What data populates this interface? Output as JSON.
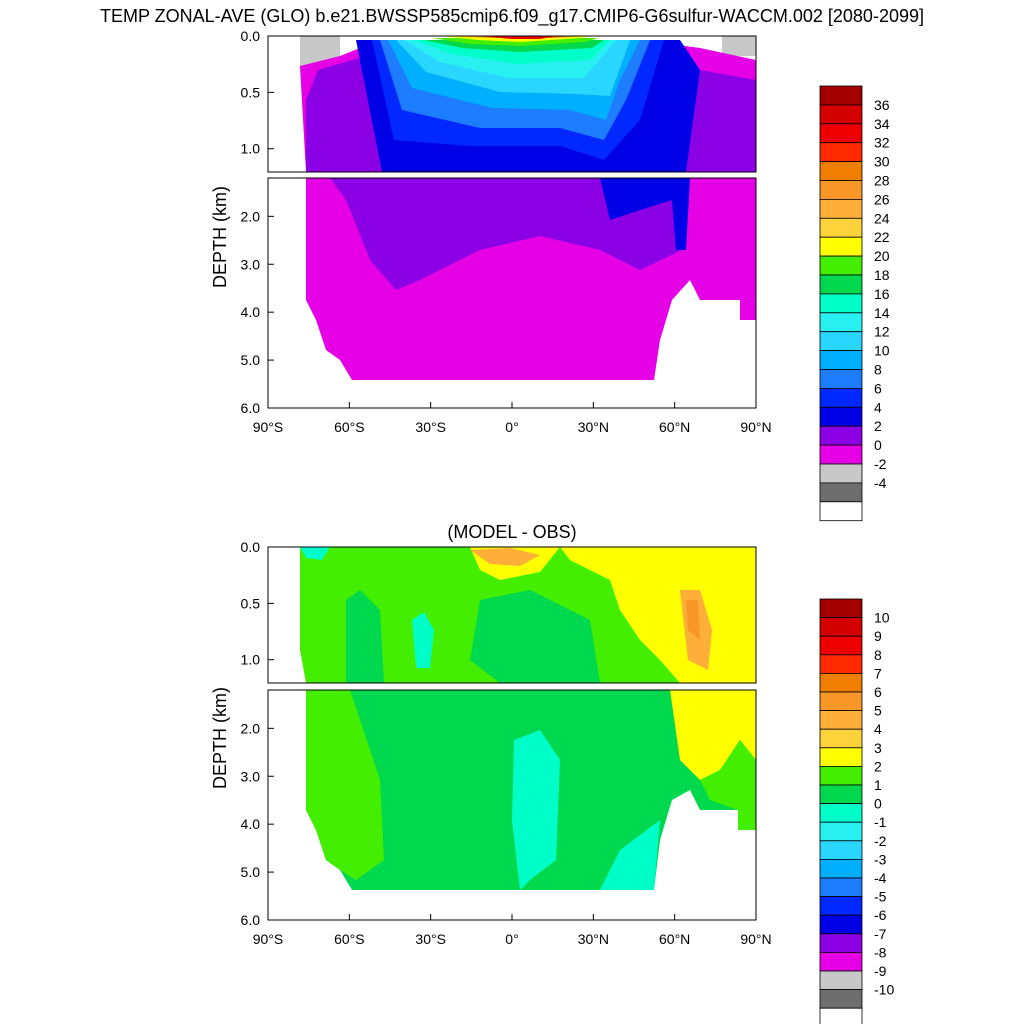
{
  "title": "TEMP ZONAL-AVE (GLO) b.e21.BWSSP585cmip6.f09_g17.CMIP6-G6sulfur-WACCM.002 [2080-2099]",
  "chart_data": [
    {
      "type": "heatmap",
      "title": "",
      "ylabel": "DEPTH (km)",
      "x_ticks": [
        "90°S",
        "60°S",
        "30°S",
        "0°",
        "30°N",
        "60°N",
        "90°N"
      ],
      "x_range": [
        -90,
        90
      ],
      "y_ticks_upper": [
        "0.0",
        "0.5",
        "1.0"
      ],
      "y_ticks_lower": [
        "2.0",
        "3.0",
        "4.0",
        "5.0",
        "6.0"
      ],
      "y_range": [
        0,
        6
      ],
      "colorbar_labels": [
        "36",
        "34",
        "32",
        "30",
        "28",
        "26",
        "24",
        "22",
        "20",
        "18",
        "16",
        "14",
        "12",
        "10",
        "8",
        "6",
        "4",
        "2",
        "0",
        "-2",
        "-4"
      ],
      "colorbar_colors": [
        "#a50000",
        "#d40000",
        "#ee0000",
        "#ff2a00",
        "#f07e00",
        "#f89628",
        "#fdaf3a",
        "#fdd23a",
        "#ffff00",
        "#44ee00",
        "#00d84e",
        "#00ffc8",
        "#28f0f0",
        "#28d6ff",
        "#00b0ff",
        "#1e7cff",
        "#0028ff",
        "#0000e6",
        "#8c00e6",
        "#e600e6",
        "#c8c8c8",
        "#6e6e6e",
        "#ffffff"
      ]
    },
    {
      "type": "heatmap",
      "title": "(MODEL - OBS)",
      "ylabel": "DEPTH (km)",
      "x_ticks": [
        "90°S",
        "60°S",
        "30°S",
        "0°",
        "30°N",
        "60°N",
        "90°N"
      ],
      "x_range": [
        -90,
        90
      ],
      "y_ticks_upper": [
        "0.0",
        "0.5",
        "1.0"
      ],
      "y_ticks_lower": [
        "2.0",
        "3.0",
        "4.0",
        "5.0",
        "6.0"
      ],
      "y_range": [
        0,
        6
      ],
      "colorbar_labels": [
        "10",
        "9",
        "8",
        "7",
        "6",
        "5",
        "4",
        "3",
        "2",
        "1",
        "0",
        "-1",
        "-2",
        "-3",
        "-4",
        "-5",
        "-6",
        "-7",
        "-8",
        "-9",
        "-10"
      ],
      "colorbar_colors": [
        "#a50000",
        "#d40000",
        "#ee0000",
        "#ff2a00",
        "#f07e00",
        "#f89628",
        "#fdaf3a",
        "#fdd23a",
        "#ffff00",
        "#44ee00",
        "#00d84e",
        "#00ffc8",
        "#28f0f0",
        "#28d6ff",
        "#00b0ff",
        "#1e7cff",
        "#0028ff",
        "#0000e6",
        "#8c00e6",
        "#e600e6",
        "#c8c8c8",
        "#6e6e6e",
        "#ffffff"
      ]
    }
  ]
}
